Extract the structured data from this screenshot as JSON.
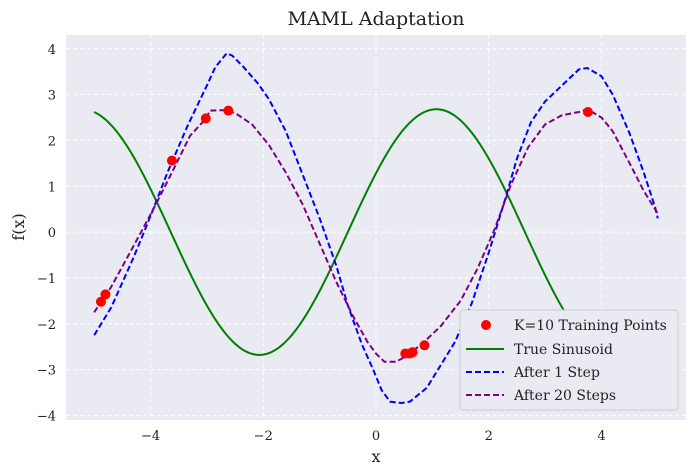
{
  "chart_data": {
    "type": "line",
    "title": "MAML Adaptation",
    "xlabel": "x",
    "ylabel": "f(x)",
    "xlim": [
      -5.5,
      5.5
    ],
    "ylim": [
      -4.1,
      4.3
    ],
    "grid": true,
    "legend_position": "bottom-right",
    "x_ticks": [
      -4,
      -2,
      0,
      2,
      4
    ],
    "x_tick_labels": [
      "−4",
      "−2",
      "0",
      "2",
      "4"
    ],
    "y_ticks": [
      -4,
      -3,
      -2,
      -1,
      0,
      1,
      2,
      3,
      4
    ],
    "y_tick_labels": [
      "−4",
      "−3",
      "−2",
      "−1",
      "0",
      "1",
      "2",
      "3",
      "4"
    ],
    "sinusoid": {
      "amplitude": 2.68,
      "phase": 0.5,
      "x_range": [
        -5,
        5
      ]
    },
    "series": [
      {
        "name": "K=10 Training Points",
        "kind": "scatter",
        "color": "#ff0000",
        "points": [
          [
            -4.88,
            -1.52
          ],
          [
            -4.8,
            -1.36
          ],
          [
            -3.62,
            1.56
          ],
          [
            -3.02,
            2.48
          ],
          [
            -2.62,
            2.65
          ],
          [
            0.52,
            -2.65
          ],
          [
            0.6,
            -2.65
          ],
          [
            0.65,
            -2.62
          ],
          [
            0.86,
            -2.47
          ],
          [
            3.76,
            2.62
          ]
        ]
      },
      {
        "name": "True Sinusoid",
        "kind": "line",
        "color": "#008000",
        "dash": "solid"
      },
      {
        "name": "After 1 Step",
        "kind": "line",
        "color": "#0000ff",
        "dash": "dashed",
        "points": [
          [
            -5.0,
            -2.25
          ],
          [
            -4.7,
            -1.65
          ],
          [
            -4.3,
            -0.55
          ],
          [
            -4.0,
            0.35
          ],
          [
            -3.7,
            1.3
          ],
          [
            -3.35,
            2.3
          ],
          [
            -3.0,
            3.2
          ],
          [
            -2.85,
            3.6
          ],
          [
            -2.65,
            3.9
          ],
          [
            -2.55,
            3.85
          ],
          [
            -2.35,
            3.6
          ],
          [
            -2.1,
            3.25
          ],
          [
            -1.9,
            2.9
          ],
          [
            -1.6,
            2.2
          ],
          [
            -1.3,
            1.25
          ],
          [
            -1.0,
            0.3
          ],
          [
            -0.7,
            -0.75
          ],
          [
            -0.5,
            -1.6
          ],
          [
            -0.25,
            -2.45
          ],
          [
            -0.05,
            -3.0
          ],
          [
            0.1,
            -3.45
          ],
          [
            0.25,
            -3.7
          ],
          [
            0.45,
            -3.73
          ],
          [
            0.6,
            -3.7
          ],
          [
            0.9,
            -3.4
          ],
          [
            1.1,
            -3.0
          ],
          [
            1.4,
            -2.4
          ],
          [
            1.7,
            -1.55
          ],
          [
            2.0,
            -0.45
          ],
          [
            2.3,
            0.75
          ],
          [
            2.5,
            1.6
          ],
          [
            2.75,
            2.4
          ],
          [
            3.0,
            2.85
          ],
          [
            3.3,
            3.2
          ],
          [
            3.6,
            3.55
          ],
          [
            3.75,
            3.58
          ],
          [
            4.0,
            3.4
          ],
          [
            4.2,
            3.0
          ],
          [
            4.5,
            2.15
          ],
          [
            4.75,
            1.3
          ],
          [
            4.95,
            0.55
          ],
          [
            5.0,
            0.3
          ]
        ]
      },
      {
        "name": "After 20 Steps",
        "kind": "line",
        "color": "#800080",
        "dash": "dashed",
        "points": [
          [
            -5.0,
            -1.75
          ],
          [
            -4.7,
            -1.2
          ],
          [
            -4.3,
            -0.3
          ],
          [
            -3.95,
            0.5
          ],
          [
            -3.6,
            1.35
          ],
          [
            -3.3,
            2.1
          ],
          [
            -3.0,
            2.5
          ],
          [
            -2.95,
            2.65
          ],
          [
            -2.7,
            2.66
          ],
          [
            -2.5,
            2.6
          ],
          [
            -2.2,
            2.35
          ],
          [
            -1.9,
            1.9
          ],
          [
            -1.6,
            1.3
          ],
          [
            -1.3,
            0.6
          ],
          [
            -1.0,
            -0.25
          ],
          [
            -0.7,
            -1.1
          ],
          [
            -0.4,
            -1.85
          ],
          [
            -0.15,
            -2.4
          ],
          [
            0.0,
            -2.65
          ],
          [
            0.15,
            -2.83
          ],
          [
            0.35,
            -2.83
          ],
          [
            0.55,
            -2.7
          ],
          [
            0.85,
            -2.4
          ],
          [
            1.15,
            -2.05
          ],
          [
            1.5,
            -1.5
          ],
          [
            1.8,
            -0.8
          ],
          [
            2.1,
            0.05
          ],
          [
            2.4,
            1.05
          ],
          [
            2.7,
            1.85
          ],
          [
            3.0,
            2.35
          ],
          [
            3.3,
            2.55
          ],
          [
            3.6,
            2.62
          ],
          [
            3.75,
            2.68
          ],
          [
            4.0,
            2.5
          ],
          [
            4.2,
            2.2
          ],
          [
            4.5,
            1.5
          ],
          [
            4.75,
            0.9
          ],
          [
            5.0,
            0.4
          ]
        ]
      }
    ]
  }
}
